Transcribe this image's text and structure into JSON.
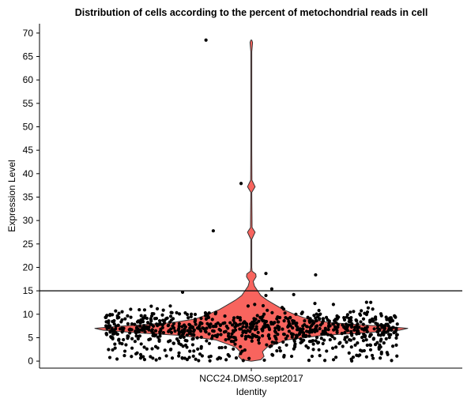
{
  "chart_data": {
    "type": "violin",
    "title": "Distribution of cells according to the percent of metochondrial reads in cell",
    "xlabel": "Identity",
    "ylabel": "Expression Level",
    "categories": [
      "NCC24.DMSO.sept2017"
    ],
    "ylim": [
      -1.5,
      72
    ],
    "yticks": [
      0,
      5,
      10,
      15,
      20,
      25,
      30,
      35,
      40,
      45,
      50,
      55,
      60,
      65,
      70
    ],
    "grid": false,
    "legend": "none",
    "threshold_line": 15,
    "colors": {
      "violin_fill": "#f8645e",
      "violin_stroke": "#333333",
      "points": "#000000",
      "axes": "#000000",
      "threshold": "#000000"
    },
    "violin_profile": [
      [
        0.0,
        0.0
      ],
      [
        0.3,
        0.06
      ],
      [
        1.0,
        0.08
      ],
      [
        2.0,
        0.07
      ],
      [
        3.0,
        0.1
      ],
      [
        4.5,
        0.22
      ],
      [
        5.5,
        0.45
      ],
      [
        6.0,
        0.7
      ],
      [
        6.6,
        0.93
      ],
      [
        7.0,
        0.98
      ],
      [
        7.5,
        0.8
      ],
      [
        8.2,
        0.5
      ],
      [
        9.0,
        0.35
      ],
      [
        10.0,
        0.27
      ],
      [
        11.0,
        0.2
      ],
      [
        12.0,
        0.15
      ],
      [
        13.0,
        0.1
      ],
      [
        14.0,
        0.06
      ],
      [
        15.0,
        0.04
      ],
      [
        16.0,
        0.02
      ],
      [
        17.0,
        0.012
      ],
      [
        18.0,
        0.03
      ],
      [
        18.6,
        0.028
      ],
      [
        19.2,
        0.005
      ],
      [
        20.0,
        0.002
      ],
      [
        26.0,
        0.002
      ],
      [
        27.5,
        0.024
      ],
      [
        28.5,
        0.005
      ],
      [
        36.0,
        0.002
      ],
      [
        37.2,
        0.024
      ],
      [
        38.6,
        0.004
      ],
      [
        45.0,
        0.002
      ],
      [
        55.0,
        0.002
      ],
      [
        66.0,
        0.002
      ],
      [
        68.0,
        0.008
      ],
      [
        68.5,
        0.0
      ]
    ],
    "outliers": [
      {
        "jitter": -0.31,
        "y": 68.5
      },
      {
        "jitter": -0.07,
        "y": 37.9
      },
      {
        "jitter": -0.26,
        "y": 27.8
      },
      {
        "jitter": 0.1,
        "y": 18.7
      },
      {
        "jitter": 0.44,
        "y": 18.4
      },
      {
        "jitter": 0.14,
        "y": 15.4
      },
      {
        "jitter": -0.47,
        "y": 14.7
      },
      {
        "jitter": 0.1,
        "y": 14.0
      },
      {
        "jitter": 0.29,
        "y": 14.2
      }
    ],
    "n_points": 900
  }
}
